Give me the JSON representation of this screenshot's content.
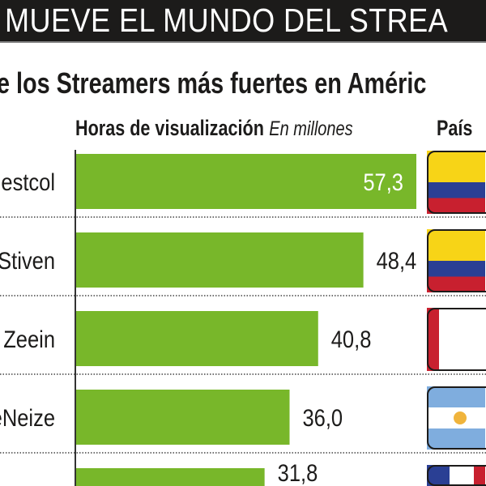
{
  "header": {
    "title": "MUEVE EL MUNDO DEL STREA"
  },
  "subtitle": "e los Streamers más fuertes en Améric",
  "chart_data": {
    "type": "bar",
    "orientation": "horizontal",
    "title": "Horas de visualización",
    "unit": "En millones",
    "country_header": "País",
    "categories": [
      "estcol",
      "Stiven",
      "Zeein",
      "eNeize",
      ""
    ],
    "values": [
      57.3,
      48.4,
      40.8,
      36.0,
      31.8
    ],
    "labels": [
      "57,3",
      "48,4",
      "40,8",
      "36,0",
      "31,8"
    ],
    "countries": [
      "colombia",
      "colombia",
      "peru",
      "argentina",
      "france"
    ],
    "colors": {
      "bar": "#78b72a",
      "text": "#1c1b1a"
    }
  }
}
